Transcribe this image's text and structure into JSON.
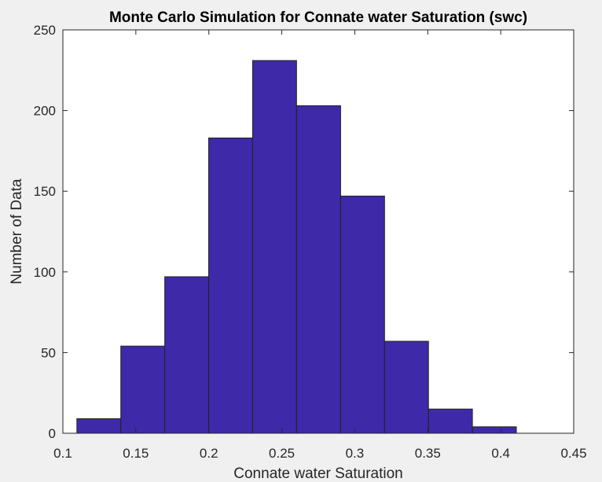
{
  "chart_data": {
    "type": "bar",
    "title": "Monte Carlo Simulation for Connate water Saturation (swc)",
    "xlabel": "Connate water Saturation",
    "ylabel": "Number of Data",
    "bar_color": "#3e29a8",
    "edge_color": "#222222",
    "xlim": [
      0.1,
      0.45
    ],
    "ylim": [
      0,
      250
    ],
    "xticks": [
      0.1,
      0.15,
      0.2,
      0.25,
      0.3,
      0.35,
      0.4,
      0.45
    ],
    "xtick_labels": [
      "0.1",
      "0.15",
      "0.2",
      "0.25",
      "0.3",
      "0.35",
      "0.4",
      "0.45"
    ],
    "yticks": [
      0,
      50,
      100,
      150,
      200,
      250
    ],
    "ytick_labels": [
      "0",
      "50",
      "100",
      "150",
      "200",
      "250"
    ],
    "bin_edges": [
      0.1096,
      0.1397,
      0.1698,
      0.1999,
      0.23,
      0.2601,
      0.2903,
      0.3204,
      0.3505,
      0.3806,
      0.4107
    ],
    "values": [
      9,
      54,
      97,
      183,
      231,
      203,
      147,
      57,
      15,
      4
    ],
    "grid": false
  }
}
